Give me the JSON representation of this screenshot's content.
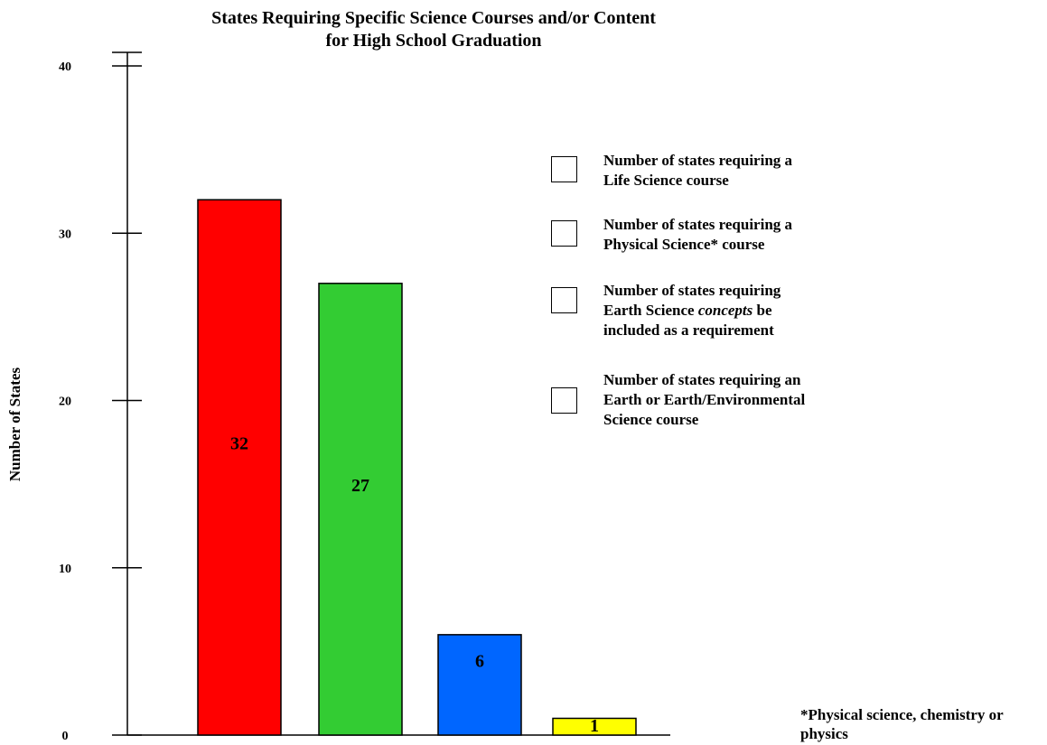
{
  "chart_data": {
    "type": "bar",
    "title": "States Requiring Specific Science Courses and/or Content for High School Graduation",
    "title_lines": [
      "States Requiring Specific Science Courses and/or Content",
      "for High School Graduation"
    ],
    "ylabel": "Number of States",
    "xlabel": "",
    "ylim": [
      0,
      40
    ],
    "yticks": [
      0,
      10,
      20,
      30,
      40
    ],
    "grid": false,
    "legend_position": "right",
    "categories": [
      "Life Science course",
      "Physical Science* course",
      "Earth Science concepts",
      "Earth or Earth/Environmental Science course"
    ],
    "series": [
      {
        "legend_lines": [
          "Number of states requiring a",
          "Life Science course"
        ],
        "value": 32,
        "color": "#ff0000"
      },
      {
        "legend_lines": [
          "Number of states requiring a",
          "Physical Science* course"
        ],
        "value": 27,
        "color": "#33cc33"
      },
      {
        "legend_lines": [
          "Number of states requiring",
          "Earth Science concepts be",
          "included as a requirement"
        ],
        "legend_italic_word": "concepts",
        "value": 6,
        "color": "#0066ff"
      },
      {
        "legend_lines": [
          "Number of states requiring an",
          "Earth or Earth/Environmental",
          "Science course"
        ],
        "value": 1,
        "color": "#ffff00"
      }
    ],
    "footnote": "*Physical science, chemistry or physics"
  }
}
